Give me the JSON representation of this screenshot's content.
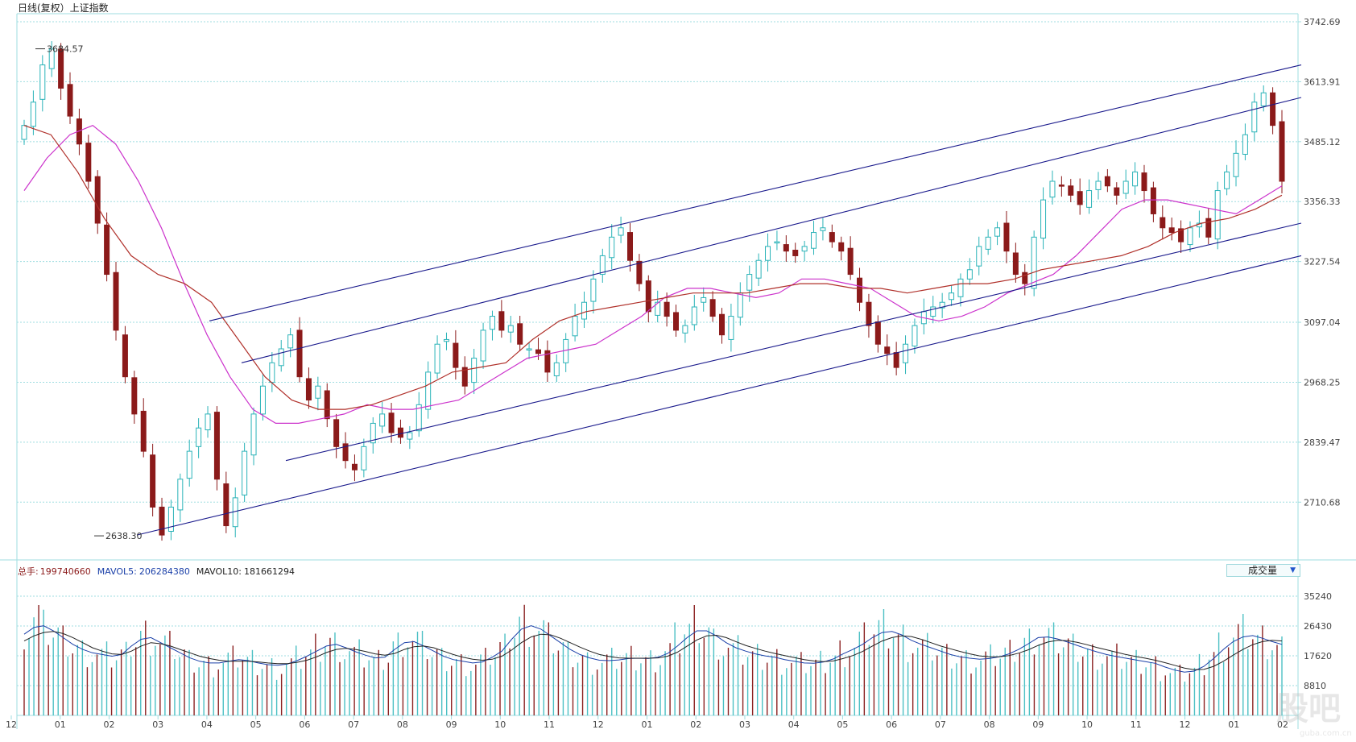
{
  "header": {
    "title": "日线(复权）上证指数"
  },
  "volume_header": {
    "total_label": "总手:",
    "total_value": "199740660",
    "mavol5_label": "MAVOL5:",
    "mavol5_value": "206284380",
    "mavol10_label": "MAVOL10:",
    "mavol10_value": "181661294"
  },
  "volume_selector": {
    "selected": "成交量",
    "icon": "dropdown-arrow-icon"
  },
  "markers": {
    "high": "3684.57",
    "low": "2638.30"
  },
  "watermark": "股吧",
  "watermark_url": "guba.com.cn",
  "colors": {
    "up": "#2ab3b8",
    "down": "#8b1a1a",
    "ma_short": "#cc33cc",
    "ma_long": "#b0302a",
    "channel": "#1a1a8c",
    "grid": "#9fdde0",
    "volume_up": "#4cc0c4",
    "volume_down": "#8b2222"
  },
  "chart_data": [
    {
      "type": "candlestick",
      "title": "日线(复权）上证指数",
      "y_ticks": [
        "3742.69",
        "3613.91",
        "3485.12",
        "3356.33",
        "3227.54",
        "3097.04",
        "2968.25",
        "2839.47",
        "2710.68"
      ],
      "ylim": [
        2590,
        3760
      ],
      "x_ticks": [
        "12",
        "01",
        "02",
        "03",
        "04",
        "05",
        "06",
        "07",
        "08",
        "09",
        "10",
        "11",
        "12",
        "01",
        "02",
        "03",
        "04",
        "05",
        "06",
        "07",
        "08",
        "09",
        "10",
        "11",
        "12",
        "01",
        "02"
      ],
      "annotations": [
        {
          "label": "3684.57",
          "value": 3684.57,
          "note": "high"
        },
        {
          "label": "2638.30",
          "value": 2638.3,
          "note": "low"
        }
      ],
      "close_series": [
        3520,
        3570,
        3650,
        3684,
        3600,
        3540,
        3480,
        3400,
        3310,
        3200,
        3080,
        2980,
        2900,
        2820,
        2700,
        2640,
        2700,
        2760,
        2820,
        2870,
        2900,
        2760,
        2660,
        2720,
        2820,
        2900,
        2960,
        3010,
        3040,
        3070,
        2980,
        2930,
        2960,
        2890,
        2830,
        2800,
        2780,
        2830,
        2880,
        2900,
        2860,
        2850,
        2860,
        2920,
        2990,
        3050,
        3060,
        3000,
        2960,
        3020,
        3080,
        3110,
        3080,
        3090,
        3050,
        3040,
        3030,
        2990,
        3010,
        3060,
        3110,
        3140,
        3190,
        3240,
        3280,
        3300,
        3230,
        3180,
        3120,
        3140,
        3110,
        3080,
        3090,
        3130,
        3150,
        3110,
        3070,
        3110,
        3160,
        3200,
        3230,
        3260,
        3270,
        3250,
        3240,
        3260,
        3290,
        3300,
        3270,
        3250,
        3200,
        3140,
        3090,
        3050,
        3030,
        3000,
        3050,
        3090,
        3120,
        3130,
        3140,
        3160,
        3190,
        3210,
        3260,
        3280,
        3300,
        3250,
        3200,
        3180,
        3280,
        3360,
        3400,
        3390,
        3370,
        3350,
        3380,
        3400,
        3390,
        3370,
        3400,
        3420,
        3380,
        3330,
        3300,
        3290,
        3270,
        3300,
        3310,
        3280,
        3380,
        3420,
        3460,
        3500,
        3570,
        3590,
        3520,
        3400
      ],
      "indicators": [
        {
          "name": "MA (magenta)",
          "values": [
            3380,
            3450,
            3500,
            3520,
            3480,
            3400,
            3300,
            3180,
            3070,
            2980,
            2910,
            2880,
            2880,
            2890,
            2900,
            2920,
            2910,
            2910,
            2920,
            2930,
            2960,
            2990,
            3020,
            3030,
            3040,
            3050,
            3080,
            3110,
            3150,
            3170,
            3170,
            3160,
            3150,
            3160,
            3190,
            3190,
            3180,
            3170,
            3140,
            3110,
            3100,
            3110,
            3130,
            3160,
            3180,
            3200,
            3240,
            3290,
            3340,
            3360,
            3360,
            3350,
            3340,
            3330,
            3360,
            3390
          ]
        },
        {
          "name": "MA (red)",
          "values": [
            3520,
            3500,
            3420,
            3320,
            3240,
            3200,
            3180,
            3140,
            3060,
            2980,
            2930,
            2910,
            2910,
            2920,
            2940,
            2960,
            2990,
            3000,
            3010,
            3060,
            3100,
            3120,
            3130,
            3140,
            3150,
            3160,
            3160,
            3160,
            3170,
            3180,
            3180,
            3170,
            3170,
            3160,
            3170,
            3180,
            3180,
            3190,
            3210,
            3220,
            3230,
            3240,
            3260,
            3290,
            3310,
            3320,
            3340,
            3370
          ]
        }
      ],
      "channel_lines": [
        {
          "from": 3100,
          "to": 3650
        },
        {
          "from": 3010,
          "to": 3580
        },
        {
          "from": 2800,
          "to": 3310
        },
        {
          "from": 2640,
          "to": 3240
        }
      ]
    },
    {
      "type": "bar",
      "title": "成交量",
      "y_ticks": [
        "35240",
        "26430",
        "17620",
        "8810"
      ],
      "ylim": [
        0,
        40000
      ],
      "series": [
        {
          "name": "总手",
          "values": [
            26000,
            29000,
            25000,
            24000,
            22000,
            20000,
            19000,
            18000,
            17500,
            17000,
            18000,
            22000,
            24000,
            23500,
            21000,
            20000,
            18000,
            16000,
            15500,
            15000,
            15500,
            16500,
            17000,
            16000,
            15000,
            14500,
            14000,
            15000,
            16500,
            18000,
            20000,
            22000,
            21000,
            19000,
            18000,
            17000,
            16000,
            17000,
            21000,
            23000,
            22000,
            20000,
            18000,
            16500,
            16000,
            15500,
            15000,
            16000,
            18000,
            20000,
            25000,
            28000,
            27000,
            25000,
            22000,
            20000,
            18000,
            17000,
            16000,
            15500,
            16000,
            16500,
            17000,
            16800,
            16500,
            17000,
            19000,
            22000,
            25000,
            27000,
            25000,
            22000,
            20000,
            19000,
            18000,
            17500,
            17000,
            16800,
            16000,
            15500,
            15000,
            15200,
            15800,
            17000,
            19000,
            20000,
            22000,
            25000,
            26000,
            25000,
            23000,
            21000,
            20000,
            19500,
            18500,
            17500,
            16800,
            16500,
            16200,
            16800,
            17500,
            18500,
            20000,
            22000,
            24000,
            23000,
            22000,
            21000,
            20000,
            19000,
            18000,
            17500,
            17000,
            16500,
            16000,
            15500,
            15000,
            13500,
            12500,
            12000,
            13000,
            15000,
            18000,
            21000,
            23000,
            24000,
            23500,
            22000,
            21000,
            20000
          ]
        },
        {
          "name": "MAVOL5",
          "values": [
            24000,
            26000,
            26500,
            25000,
            23000,
            21000,
            19500,
            18500,
            18000,
            17500,
            18000,
            20500,
            22500,
            23000,
            21500,
            20000,
            18500,
            17000,
            16000,
            15500,
            15500,
            16000,
            16500,
            16200,
            15500,
            15000,
            14800,
            15200,
            16200,
            17500,
            19000,
            20500,
            21000,
            20000,
            18800,
            17800,
            17000,
            17200,
            19500,
            21500,
            21800,
            20500,
            19000,
            17500,
            16500,
            16000,
            15500,
            15800,
            17200,
            19000,
            22500,
            25500,
            26500,
            25500,
            23500,
            21500,
            19500,
            18000,
            17000,
            16300,
            16200,
            16400,
            16800,
            16900,
            16800,
            17200,
            18300,
            20500,
            23000,
            25000,
            25000,
            23500,
            21500,
            20000,
            19000,
            18200,
            17600,
            17200,
            16500,
            16000,
            15500,
            15400,
            15800,
            16700,
            18200,
            19500,
            21000,
            23000,
            24500,
            24800,
            23800,
            22200,
            21000,
            20000,
            19000,
            18000,
            17300,
            16900,
            16600,
            16800,
            17300,
            18200,
            19500,
            21200,
            23000,
            23200,
            22600,
            21700,
            20700,
            19700,
            18800,
            18000,
            17400,
            16900,
            16400,
            15900,
            15400,
            14300,
            13400,
            12800,
            13100,
            14500,
            16800,
            19500,
            21800,
            23200,
            23600,
            22800,
            21800,
            21000
          ]
        },
        {
          "name": "MAVOL10",
          "values": [
            22000,
            23500,
            24500,
            24800,
            24200,
            23000,
            21500,
            20000,
            19000,
            18200,
            18000,
            19000,
            20500,
            21500,
            21200,
            20500,
            19500,
            18500,
            17500,
            16800,
            16300,
            16000,
            16000,
            16000,
            15800,
            15500,
            15300,
            15300,
            15700,
            16300,
            17300,
            18600,
            19500,
            19800,
            19500,
            18900,
            18200,
            17800,
            18300,
            19500,
            20300,
            20500,
            20000,
            19000,
            18000,
            17200,
            16600,
            16300,
            16600,
            17500,
            19300,
            21500,
            23200,
            24000,
            23800,
            22800,
            21500,
            20200,
            19000,
            18000,
            17400,
            17000,
            16900,
            16900,
            16900,
            17000,
            17500,
            18700,
            20500,
            22300,
            23500,
            23700,
            23000,
            21800,
            20700,
            19800,
            19000,
            18300,
            17700,
            17100,
            16500,
            16100,
            15900,
            16100,
            16800,
            17700,
            18900,
            20500,
            22000,
            23000,
            23500,
            23300,
            22500,
            21500,
            20500,
            19700,
            18900,
            18200,
            17600,
            17300,
            17300,
            17700,
            18400,
            19400,
            20700,
            21700,
            22200,
            22100,
            21600,
            20900,
            20100,
            19400,
            18700,
            18000,
            17400,
            16900,
            16300,
            15600,
            14800,
            14000,
            13500,
            13600,
            14500,
            16000,
            17800,
            19500,
            20900,
            21800,
            22200,
            22000
          ]
        }
      ]
    }
  ]
}
